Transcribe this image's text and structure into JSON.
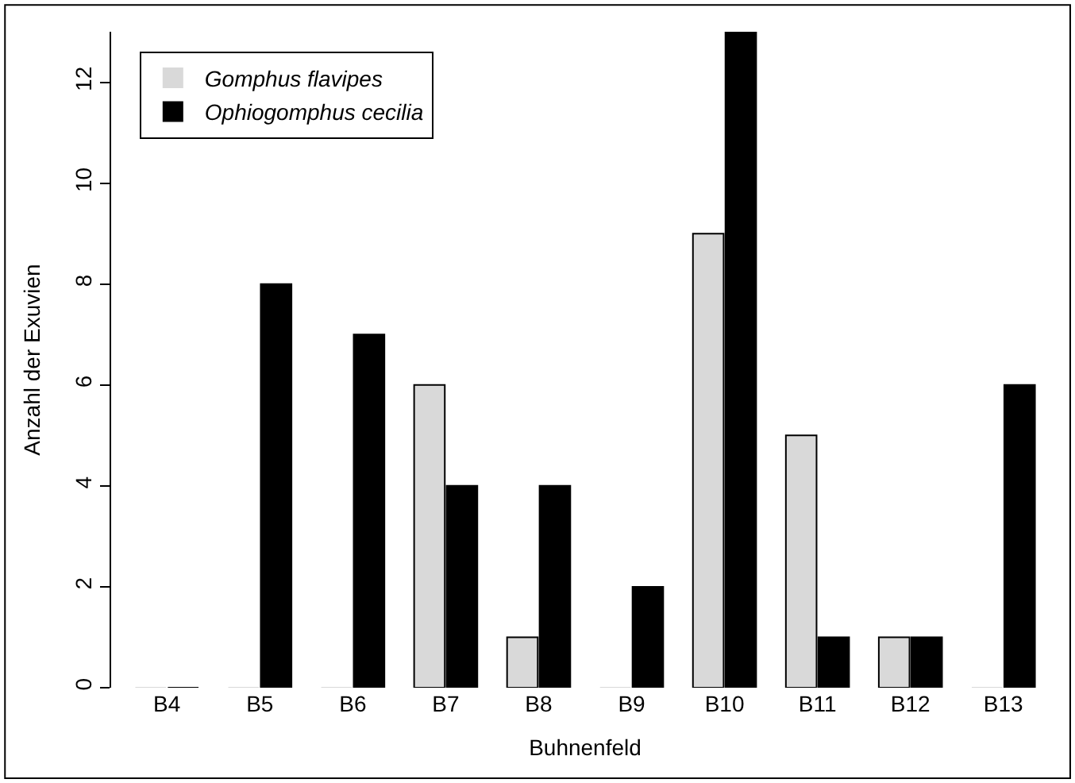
{
  "chart_data": {
    "type": "bar",
    "xlabel": "Buhnenfeld",
    "ylabel": "Anzahl der Exuvien",
    "categories": [
      "B4",
      "B5",
      "B6",
      "B7",
      "B8",
      "B9",
      "B10",
      "B11",
      "B12",
      "B13"
    ],
    "series": [
      {
        "name": "Gomphus flavipes",
        "color": "#d9d9d9",
        "values": [
          0,
          0,
          0,
          6,
          1,
          0,
          9,
          5,
          1,
          0
        ]
      },
      {
        "name": "Ophiogomphus cecilia",
        "color": "#000000",
        "values": [
          0,
          8,
          7,
          4,
          4,
          2,
          13,
          1,
          1,
          6
        ]
      }
    ],
    "ylim": [
      0,
      13
    ],
    "yticks": [
      0,
      2,
      4,
      6,
      8,
      10,
      12
    ],
    "legend": "top left"
  }
}
